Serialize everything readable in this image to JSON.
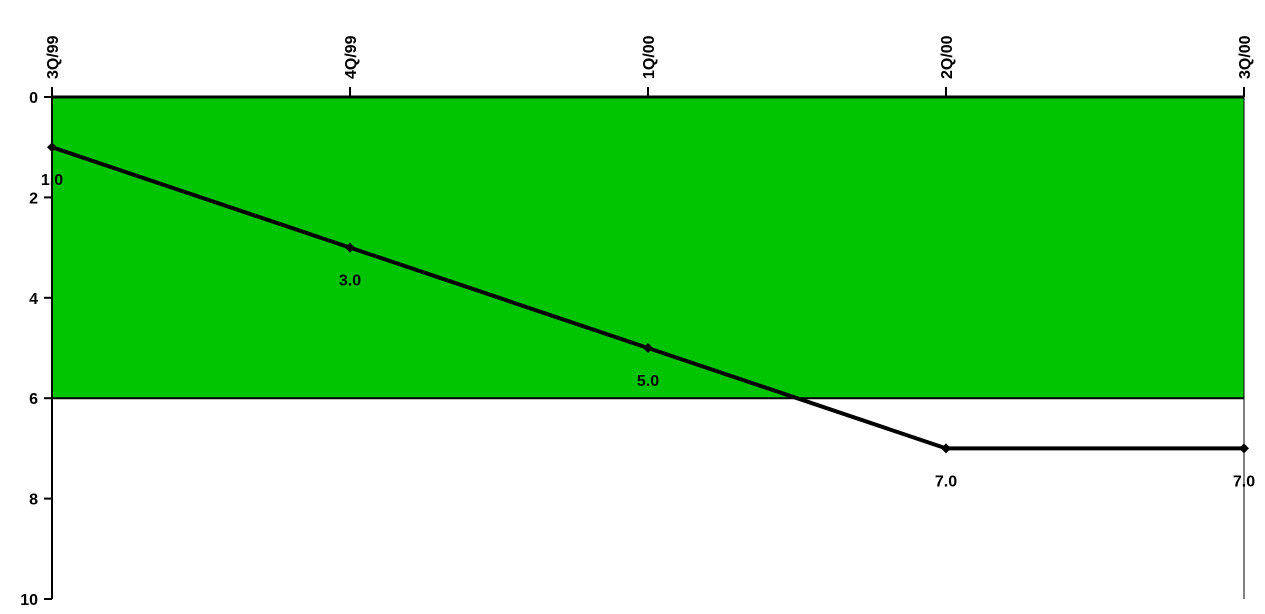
{
  "chart_data": {
    "type": "line",
    "title": "",
    "xlabel": "",
    "ylabel": "",
    "categories": [
      "3Q/99",
      "4Q/99",
      "1Q/00",
      "2Q/00",
      "3Q/00"
    ],
    "series": [
      {
        "values": [
          1.0,
          3.0,
          5.0,
          7.0,
          7.0
        ],
        "data_labels": [
          "1.0",
          "3.0",
          "5.0",
          "7.0",
          "7.0"
        ]
      }
    ],
    "ylim": [
      0,
      10
    ],
    "y_inverted": true,
    "y_ticks": [
      0,
      2,
      4,
      6,
      8,
      10
    ],
    "y_tick_labels": [
      "0",
      "2",
      "4",
      "6",
      "8",
      "10"
    ],
    "x_axis_position": "top",
    "x_tick_label_orientation": "vertical",
    "shaded_band": {
      "from": 0,
      "to": 6,
      "color": "#00c400"
    },
    "line_color": "#000000",
    "marker": "diamond",
    "grid": false,
    "legend": "none"
  }
}
